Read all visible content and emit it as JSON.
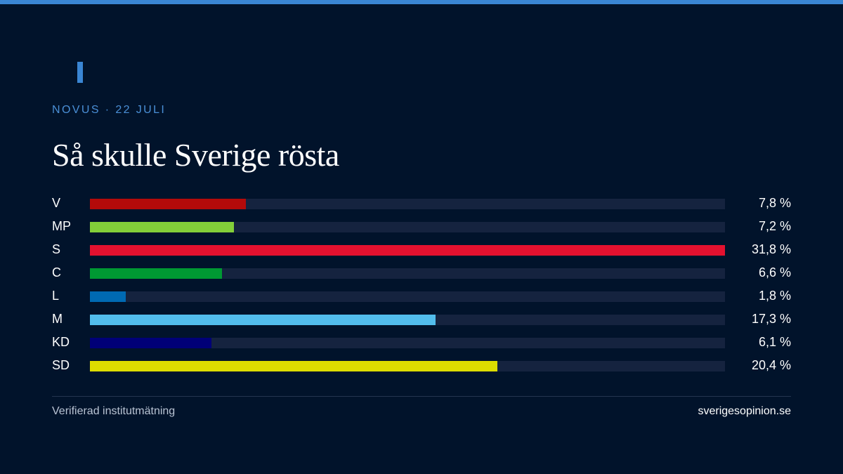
{
  "header": {
    "kicker": "NOVUS · 22 JULI",
    "title": "Så skulle Sverige rösta"
  },
  "colors": {
    "background": "#01132b",
    "accent": "#3a86d4",
    "track": "#15233f"
  },
  "chart_data": {
    "type": "bar",
    "orientation": "horizontal",
    "title": "Så skulle Sverige rösta",
    "categories": [
      "V",
      "MP",
      "S",
      "C",
      "L",
      "M",
      "KD",
      "SD"
    ],
    "values": [
      7.8,
      7.2,
      31.8,
      6.6,
      1.8,
      17.3,
      6.1,
      20.4
    ],
    "value_labels": [
      "7,8 %",
      "7,2 %",
      "31,8 %",
      "6,6 %",
      "1,8 %",
      "17,3 %",
      "6,1 %",
      "20,4 %"
    ],
    "colors": [
      "#b30a0a",
      "#83cf39",
      "#e4112f",
      "#009933",
      "#006ab3",
      "#52bdec",
      "#000077",
      "#dddd00"
    ],
    "xlim": [
      0,
      31.8
    ],
    "grid": false,
    "legend": "none"
  },
  "footer": {
    "note": "Verifierad institutmätning",
    "site": "sverigesopinion.se"
  }
}
